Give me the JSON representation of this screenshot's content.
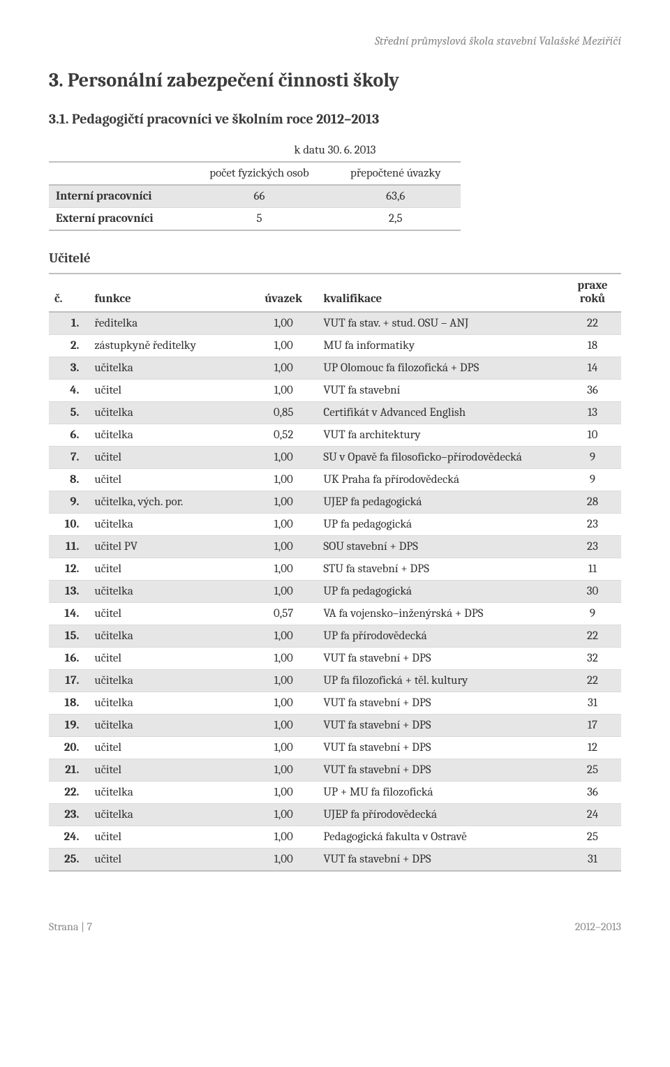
{
  "header": {
    "school_name": "Střední průmyslová škola stavební Valašské Meziříčí"
  },
  "section": {
    "title": "3. Personální zabezpečení činnosti školy",
    "subsection_title": "3.1. Pedagogičtí pracovníci ve školním roce 2012–2013"
  },
  "summary_table": {
    "date_label": "k datu 30. 6. 2013",
    "col_count": "počet fyzických osob",
    "col_conv": "přepočtené úvazky",
    "rows": [
      {
        "label": "Interní pracovníci",
        "count": "66",
        "conv": "63,6"
      },
      {
        "label": "Externí pracovníci",
        "count": "5",
        "conv": "2,5"
      }
    ]
  },
  "teachers_table": {
    "title": "Učitelé",
    "columns": {
      "idx": "č.",
      "role": "funkce",
      "load": "úvazek",
      "qual": "kvalifikace",
      "years_line1": "praxe",
      "years_line2": "roků"
    },
    "rows": [
      {
        "n": "1.",
        "role": "ředitelka",
        "load": "1,00",
        "qual": "VUT fa stav. + stud. OSU – ANJ",
        "y": "22"
      },
      {
        "n": "2.",
        "role": "zástupkyně ředitelky",
        "load": "1,00",
        "qual": "MU fa informatiky",
        "y": "18"
      },
      {
        "n": "3.",
        "role": "učitelka",
        "load": "1,00",
        "qual": "UP Olomouc fa filozofická + DPS",
        "y": "14"
      },
      {
        "n": "4.",
        "role": "učitel",
        "load": "1,00",
        "qual": "VUT fa stavební",
        "y": "36"
      },
      {
        "n": "5.",
        "role": "učitelka",
        "load": "0,85",
        "qual": "Certifikát v Advanced English",
        "y": "13"
      },
      {
        "n": "6.",
        "role": "učitelka",
        "load": "0,52",
        "qual": "VUT fa architektury",
        "y": "10"
      },
      {
        "n": "7.",
        "role": "učitel",
        "load": "1,00",
        "qual": "SU v Opavě fa filosoficko–přírodovědecká",
        "y": "9"
      },
      {
        "n": "8.",
        "role": "učitel",
        "load": "1,00",
        "qual": "UK Praha  fa přírodovědecká",
        "y": "9"
      },
      {
        "n": "9.",
        "role": "učitelka, vých. por.",
        "load": "1,00",
        "qual": "UJEP fa pedagogická",
        "y": "28"
      },
      {
        "n": "10.",
        "role": "učitelka",
        "load": "1,00",
        "qual": "UP fa pedagogická",
        "y": "23"
      },
      {
        "n": "11.",
        "role": "učitel PV",
        "load": "1,00",
        "qual": "SOU stavební + DPS",
        "y": "23"
      },
      {
        "n": "12.",
        "role": "učitel",
        "load": "1,00",
        "qual": "STU fa stavební + DPS",
        "y": "11"
      },
      {
        "n": "13.",
        "role": "učitelka",
        "load": "1,00",
        "qual": "UP fa pedagogická",
        "y": "30"
      },
      {
        "n": "14.",
        "role": "učitel",
        "load": "0,57",
        "qual": "VA fa vojensko–inženýrská + DPS",
        "y": "9"
      },
      {
        "n": "15.",
        "role": "učitelka",
        "load": "1,00",
        "qual": "UP fa přírodovědecká",
        "y": "22"
      },
      {
        "n": "16.",
        "role": "učitel",
        "load": "1,00",
        "qual": "VUT fa stavební + DPS",
        "y": "32"
      },
      {
        "n": "17.",
        "role": "učitelka",
        "load": "1,00",
        "qual": "UP fa filozofická + těl. kultury",
        "y": "22"
      },
      {
        "n": "18.",
        "role": "učitelka",
        "load": "1,00",
        "qual": "VUT fa stavební + DPS",
        "y": "31"
      },
      {
        "n": "19.",
        "role": "učitelka",
        "load": "1,00",
        "qual": "VUT fa stavební + DPS",
        "y": "17"
      },
      {
        "n": "20.",
        "role": "učitel",
        "load": "1,00",
        "qual": "VUT fa stavební + DPS",
        "y": "12"
      },
      {
        "n": "21.",
        "role": "učitel",
        "load": "1,00",
        "qual": "VUT fa stavební + DPS",
        "y": "25"
      },
      {
        "n": "22.",
        "role": "učitelka",
        "load": "1,00",
        "qual": "UP + MU fa filozofická",
        "y": "36"
      },
      {
        "n": "23.",
        "role": "učitelka",
        "load": "1,00",
        "qual": "UJEP fa přírodovědecká",
        "y": "24"
      },
      {
        "n": "24.",
        "role": "učitel",
        "load": "1,00",
        "qual": "Pedagogická fakulta v Ostravě",
        "y": "25"
      },
      {
        "n": "25.",
        "role": "učitel",
        "load": "1,00",
        "qual": "VUT fa stavební + DPS",
        "y": "31"
      }
    ]
  },
  "footer": {
    "left": "Strana | 7",
    "right": "2012–2013"
  },
  "style": {
    "text_color": "#333333",
    "muted_color": "#8a8a8a",
    "shade_color": "#e6e6e6",
    "border_strong": "#bfbfbf",
    "border_light": "#d9d9d9",
    "background": "#ffffff",
    "title_fontsize": 28,
    "subtitle_fontsize": 20,
    "body_fontsize": 17
  }
}
